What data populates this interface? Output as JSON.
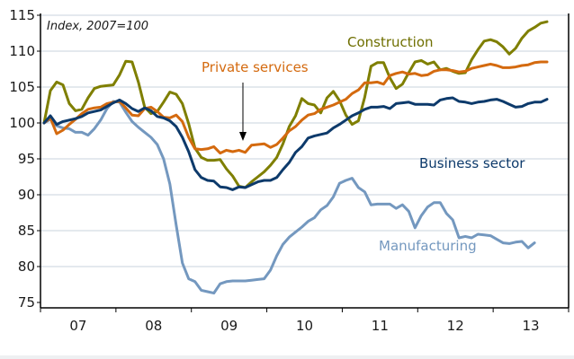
{
  "chart_data": {
    "type": "line",
    "title": "",
    "subtitle": "Index, 2007=100",
    "xlabel": "",
    "ylabel": "",
    "ylim": [
      75,
      115
    ],
    "yticks": [
      75,
      80,
      85,
      90,
      95,
      100,
      105,
      110,
      115
    ],
    "xtick_labels": [
      "07",
      "08",
      "09",
      "10",
      "11",
      "12",
      "13"
    ],
    "x_start": "2007-01",
    "frequency": "monthly",
    "grid": true,
    "annotation_arrow": {
      "target_series": "Private services",
      "period": "2009-09"
    },
    "series": [
      {
        "name": "Construction",
        "color": "#7f7f00",
        "label_color": "#6f6f00",
        "values": [
          100,
          104.5,
          105.7,
          105.3,
          102.7,
          101.7,
          101.9,
          103.5,
          104.8,
          105.1,
          105.2,
          105.3,
          106.7,
          108.6,
          108.5,
          105.7,
          102.2,
          101.3,
          101.6,
          102.9,
          104.3,
          104.0,
          102.7,
          99.9,
          96.5,
          95.2,
          94.8,
          94.8,
          94.9,
          93.6,
          92.6,
          91.2,
          91.0,
          91.8,
          92.5,
          93.2,
          94.1,
          95.2,
          97.1,
          99.5,
          101.0,
          103.4,
          102.7,
          102.5,
          101.4,
          103.5,
          104.4,
          103.1,
          101.1,
          99.8,
          100.3,
          103.6,
          107.9,
          108.4,
          108.4,
          106.3,
          104.8,
          105.4,
          107.0,
          108.5,
          108.7,
          108.2,
          108.5,
          107.4,
          107.6,
          107.2,
          106.9,
          107.0,
          108.8,
          110.2,
          111.4,
          111.6,
          111.3,
          110.6,
          109.6,
          110.4,
          111.8,
          112.8,
          113.3,
          113.9,
          114.1
        ]
      },
      {
        "name": "Private services",
        "color": "#d46a0f",
        "label_color": "#d46a0f",
        "values": [
          100,
          100.7,
          98.5,
          99.0,
          99.8,
          100.5,
          101.3,
          101.9,
          102.1,
          102.2,
          102.7,
          102.9,
          103.0,
          102.1,
          101.1,
          101.0,
          102.0,
          102.2,
          101.6,
          100.8,
          100.7,
          101.1,
          100.2,
          98.0,
          96.4,
          96.3,
          96.4,
          96.7,
          95.8,
          96.2,
          96.0,
          96.2,
          95.9,
          96.9,
          97.0,
          97.1,
          96.6,
          97.0,
          97.9,
          98.9,
          99.5,
          100.4,
          101.1,
          101.3,
          101.9,
          102.2,
          102.5,
          102.9,
          103.3,
          104.1,
          104.6,
          105.6,
          105.6,
          105.7,
          105.4,
          106.6,
          106.9,
          107.1,
          106.8,
          106.9,
          106.6,
          106.7,
          107.2,
          107.4,
          107.4,
          107.3,
          107.1,
          107.2,
          107.6,
          107.8,
          108.0,
          108.2,
          108.0,
          107.7,
          107.7,
          107.8,
          108.0,
          108.1,
          108.4,
          108.5,
          108.5
        ]
      },
      {
        "name": "Business sector",
        "color": "#0d3a6b",
        "label_color": "#0d3a6b",
        "values": [
          100,
          101.0,
          99.8,
          100.2,
          100.4,
          100.6,
          100.9,
          101.4,
          101.6,
          101.8,
          102.3,
          102.8,
          103.2,
          102.7,
          102.0,
          101.6,
          102.1,
          101.7,
          100.9,
          100.7,
          100.3,
          99.5,
          98.0,
          96.0,
          93.5,
          92.4,
          92.0,
          91.9,
          91.1,
          91.0,
          90.7,
          91.1,
          91.0,
          91.4,
          91.8,
          92.0,
          92.0,
          92.4,
          93.5,
          94.5,
          95.9,
          96.7,
          97.9,
          98.2,
          98.4,
          98.6,
          99.3,
          99.8,
          100.4,
          101.0,
          101.4,
          101.9,
          102.2,
          102.2,
          102.3,
          102.0,
          102.7,
          102.8,
          102.9,
          102.6,
          102.6,
          102.6,
          102.5,
          103.2,
          103.4,
          103.5,
          103.0,
          102.9,
          102.7,
          102.9,
          103.0,
          103.2,
          103.3,
          103.0,
          102.6,
          102.2,
          102.3,
          102.7,
          102.9,
          102.9,
          103.3
        ]
      },
      {
        "name": "Manufacturing",
        "color": "#7498bf",
        "label_color": "#7498bf",
        "values": [
          100,
          100.5,
          99.6,
          99.3,
          99.2,
          98.7,
          98.7,
          98.3,
          99.2,
          100.4,
          102.0,
          103.0,
          102.9,
          101.5,
          100.2,
          99.4,
          98.7,
          98.0,
          97.0,
          95.0,
          91.5,
          85.8,
          80.5,
          78.3,
          77.9,
          76.7,
          76.5,
          76.3,
          77.6,
          77.9,
          78.0,
          78.0,
          78.0,
          78.1,
          78.2,
          78.3,
          79.5,
          81.5,
          83.1,
          84.1,
          84.8,
          85.5,
          86.3,
          86.8,
          87.9,
          88.5,
          89.7,
          91.6,
          92.0,
          92.3,
          91.0,
          90.4,
          88.6,
          88.7,
          88.7,
          88.7,
          88.1,
          88.6,
          87.7,
          85.4,
          87.1,
          88.3,
          88.9,
          88.9,
          87.4,
          86.5,
          84.0,
          84.2,
          84.0,
          84.5,
          84.4,
          84.3,
          83.8,
          83.3,
          83.2,
          83.4,
          83.5,
          82.6,
          83.3
        ]
      }
    ],
    "annotations": [
      {
        "text": "Construction",
        "series": "Construction"
      },
      {
        "text": "Private services",
        "series": "Private services"
      },
      {
        "text": "Business sector",
        "series": "Business sector"
      },
      {
        "text": "Manufacturing",
        "series": "Manufacturing"
      }
    ]
  }
}
